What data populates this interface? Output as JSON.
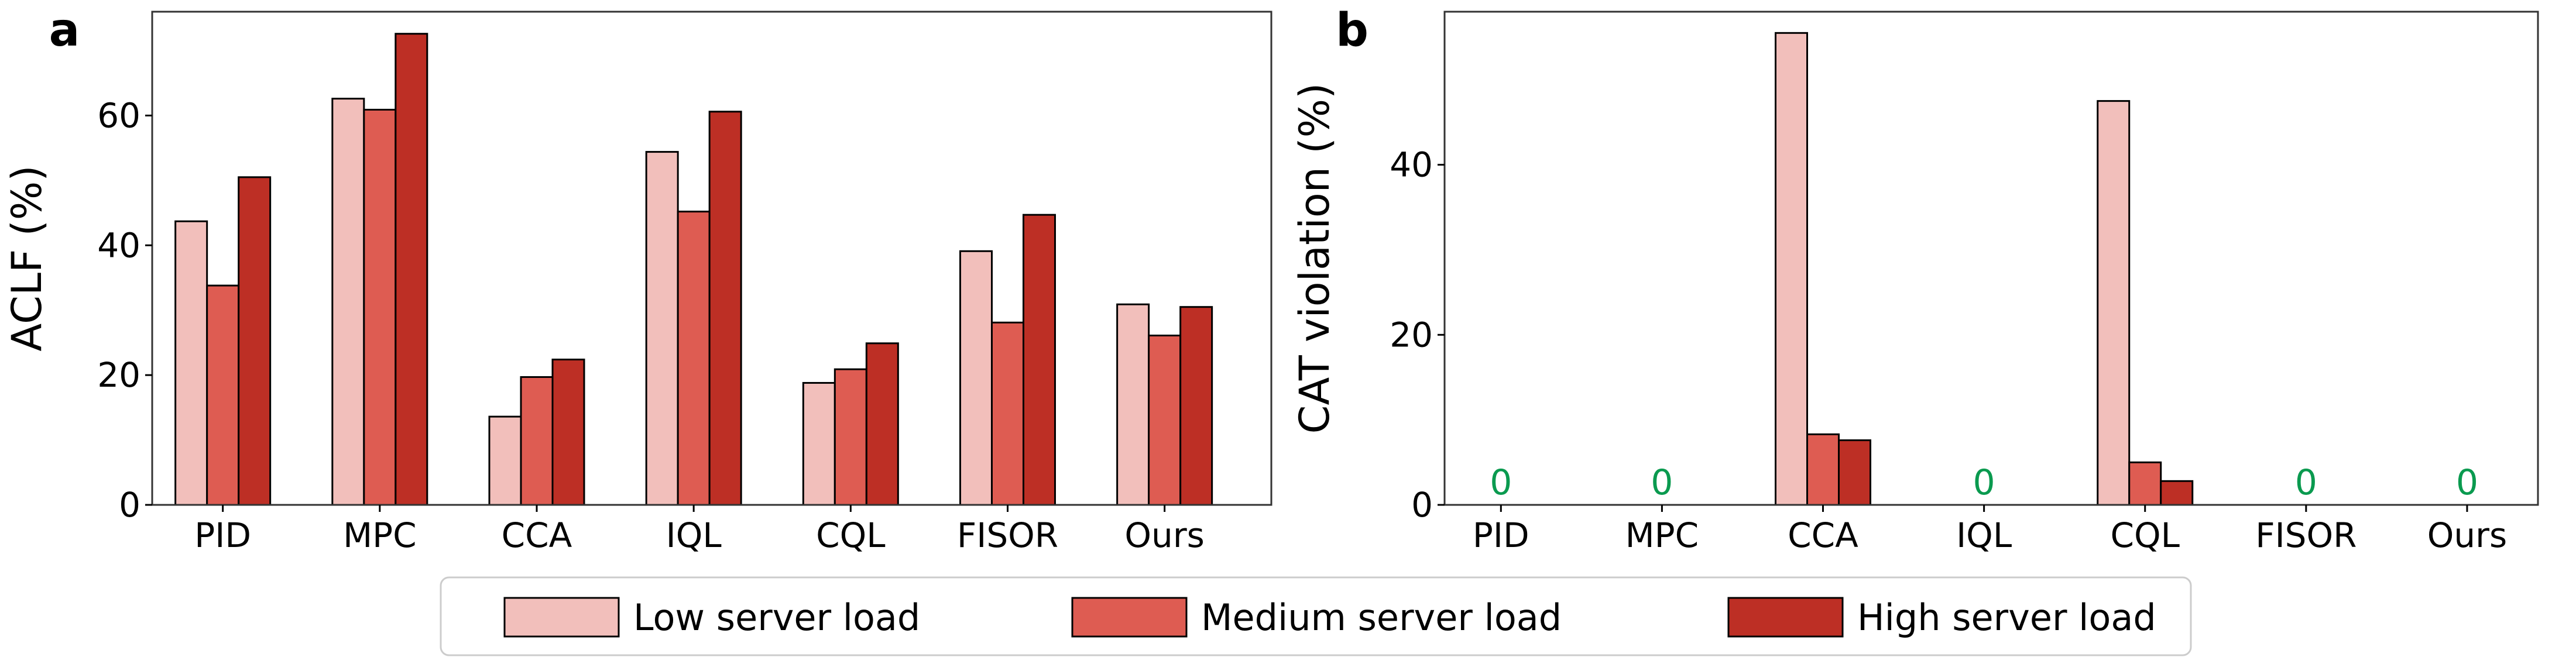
{
  "chart_data": [
    {
      "type": "bar",
      "panel_label": "a",
      "title": "",
      "xlabel": "",
      "ylabel": "ACLF (%)",
      "categories": [
        "PID",
        "MPC",
        "CCA",
        "IQL",
        "CQL",
        "FISOR",
        "Ours"
      ],
      "ylim": [
        0,
        76
      ],
      "yticks": [
        "0",
        "20",
        "40",
        "60"
      ],
      "ytick_values": [
        0,
        20,
        40,
        60
      ],
      "grid": false,
      "series": [
        {
          "name": "Low server load",
          "color": "#f2bfbb",
          "values": [
            43.7,
            62.6,
            13.6,
            54.4,
            18.8,
            39.1,
            30.9
          ]
        },
        {
          "name": "Medium server load",
          "color": "#de5c52",
          "values": [
            33.8,
            60.9,
            19.7,
            45.2,
            20.9,
            28.1,
            26.1
          ]
        },
        {
          "name": "High server load",
          "color": "#bd2f25",
          "values": [
            50.5,
            72.6,
            22.4,
            60.6,
            24.9,
            44.7,
            30.5
          ]
        }
      ]
    },
    {
      "type": "bar",
      "panel_label": "b",
      "title": "",
      "xlabel": "",
      "ylabel": "CAT violation (%)",
      "categories": [
        "PID",
        "MPC",
        "CCA",
        "IQL",
        "CQL",
        "FISOR",
        "Ours"
      ],
      "ylim": [
        0,
        58
      ],
      "yticks": [
        "0",
        "20",
        "40"
      ],
      "ytick_values": [
        0,
        20,
        40
      ],
      "grid": false,
      "zero_annotation": "0",
      "zero_annotation_color": "#0a9a4f",
      "series": [
        {
          "name": "Low server load",
          "color": "#f2bfbb",
          "values": [
            0,
            0,
            55.5,
            0,
            47.5,
            0,
            0
          ]
        },
        {
          "name": "Medium server load",
          "color": "#de5c52",
          "values": [
            0,
            0,
            8.3,
            0,
            5.0,
            0,
            0
          ]
        },
        {
          "name": "High server load",
          "color": "#bd2f25",
          "values": [
            0,
            0,
            7.6,
            0,
            2.8,
            0,
            0
          ]
        }
      ]
    }
  ],
  "legend": {
    "placement": "bottom-center",
    "entries": [
      "Low server load",
      "Medium server load",
      "High server load"
    ]
  }
}
